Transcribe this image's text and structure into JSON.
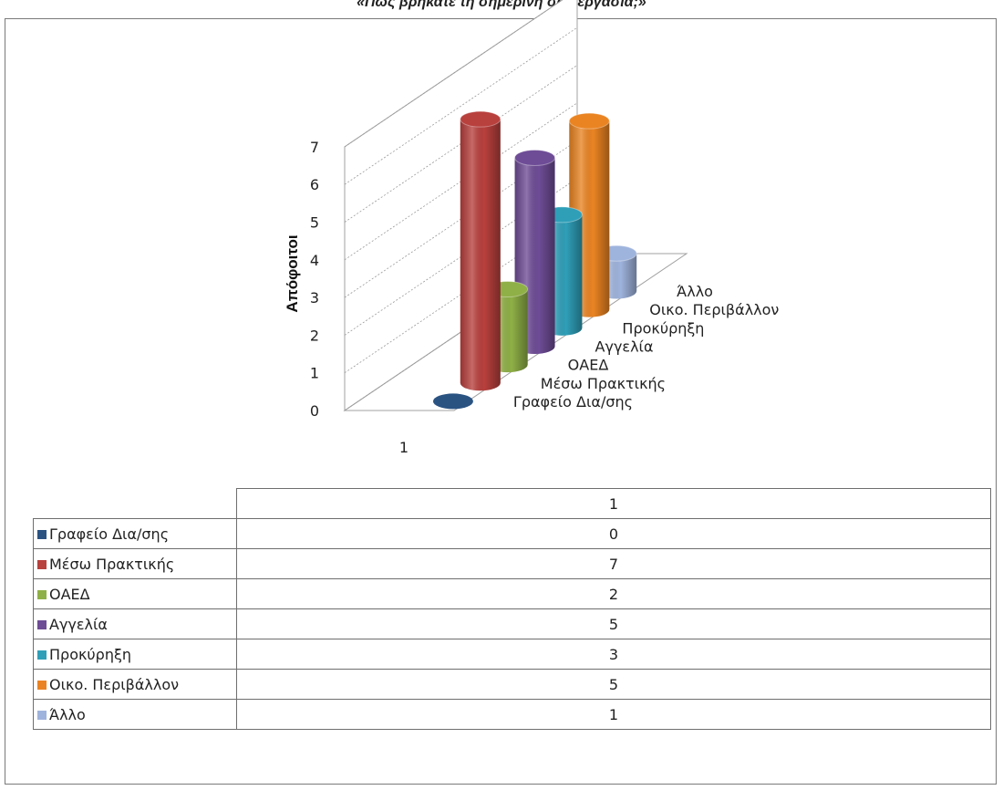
{
  "title": "«Πώς βρήκατε τη σημερινή σας εργασία;»",
  "chart_data": {
    "type": "bar",
    "subtype": "3d-cylinder",
    "categories": [
      "1"
    ],
    "ylabel": "Απόφοιτοι",
    "ylim": [
      0,
      7
    ],
    "yticks": [
      "0",
      "1",
      "2",
      "3",
      "4",
      "5",
      "6",
      "7"
    ],
    "grid": true,
    "legend": "data-table",
    "series": [
      {
        "name": "Γραφείο Δια/σης",
        "values": [
          0
        ],
        "color": "#2a5382"
      },
      {
        "name": "Μέσω Πρακτικής",
        "values": [
          7
        ],
        "color": "#b8403d"
      },
      {
        "name": "ΟΑΕΔ",
        "values": [
          2
        ],
        "color": "#8fb046"
      },
      {
        "name": "Αγγελία",
        "values": [
          5
        ],
        "color": "#6e4c96"
      },
      {
        "name": "Προκύρηξη",
        "values": [
          3
        ],
        "color": "#2f9fb8"
      },
      {
        "name": "Οικο. Περιβάλλον",
        "values": [
          5
        ],
        "color": "#ea8422"
      },
      {
        "name": "Άλλο",
        "values": [
          1
        ],
        "color": "#9fb4dd"
      }
    ]
  },
  "table": {
    "header": "1"
  }
}
